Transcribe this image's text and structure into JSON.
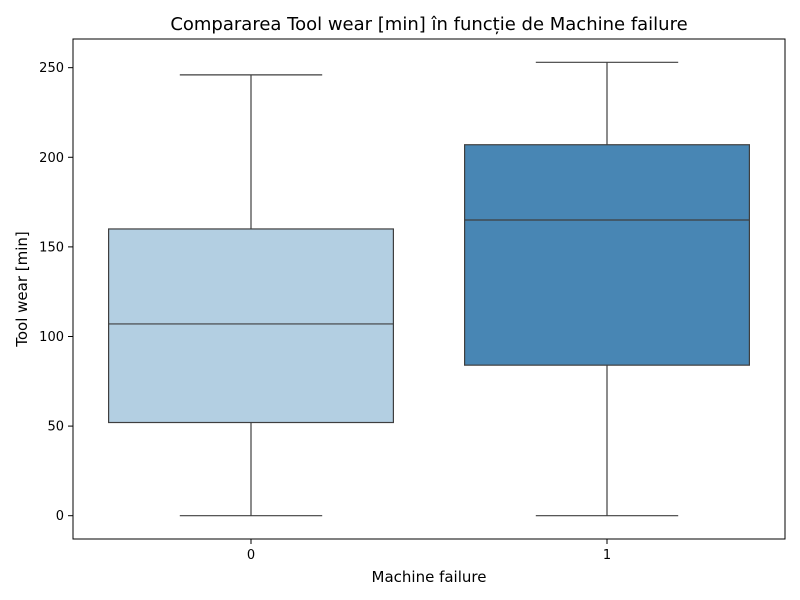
{
  "chart_data": {
    "type": "box",
    "title": "Compararea Tool wear [min] în funcție de Machine failure",
    "xlabel": "Machine failure",
    "ylabel": "Tool wear [min]",
    "categories": [
      "0",
      "1"
    ],
    "series": [
      {
        "category": "0",
        "min": 0,
        "q1": 52,
        "median": 107,
        "q3": 160,
        "max": 246,
        "color": "#b3cfe2"
      },
      {
        "category": "1",
        "min": 0,
        "q1": 84,
        "median": 165,
        "q3": 207,
        "max": 253,
        "color": "#4886b4"
      }
    ],
    "yticks": [
      0,
      50,
      100,
      150,
      200,
      250
    ],
    "ylim": [
      -13,
      266
    ],
    "grid": false,
    "legend": "none"
  }
}
